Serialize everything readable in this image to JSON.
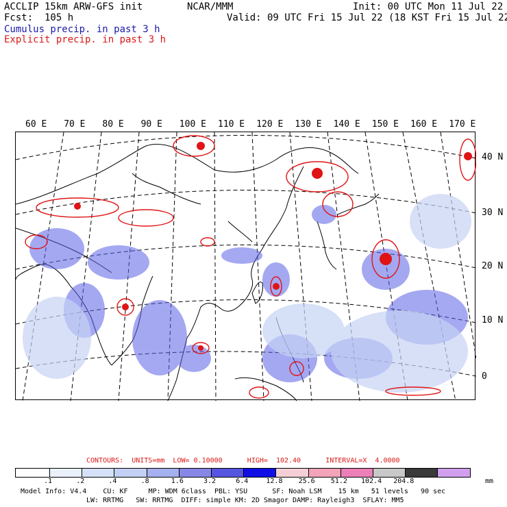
{
  "header": {
    "model": "ACCLIP 15km ARW-GFS init",
    "center": "NCAR/MMM",
    "init": "Init: 00 UTC Mon 11 Jul 22",
    "fcst": "Fcst:  105 h",
    "valid": "Valid: 09 UTC Fri 15 Jul 22 (18 KST Fri 15 Jul 22)",
    "legend_cumulus": "Cumulus precip. in past 3 h",
    "legend_explicit": "Explicit precip. in past 3 h"
  },
  "map": {
    "lon_labels": [
      "60 E",
      "70 E",
      "80 E",
      "90 E",
      "100 E",
      "110 E",
      "120 E",
      "130 E",
      "140 E",
      "150 E",
      "160 E",
      "170 E"
    ],
    "lat_labels": [
      "40 N",
      "30 N",
      "20 N",
      "10 N",
      "0"
    ]
  },
  "contours": {
    "text": "CONTOURS:  UNITS=mm  LOW= 0.10000      HIGH=  102.40      INTERVAL=X  4.0000"
  },
  "colorbar": {
    "colors": [
      "#ffffff",
      "#eaf1fb",
      "#d4e1f6",
      "#c2d0f3",
      "#a5b0ee",
      "#8787e8",
      "#5555e0",
      "#1010e6",
      "#f4d0d6",
      "#f3a4b8",
      "#ec7fb8",
      "#c8c8c8",
      "#3a3a3a",
      "#d0a0ee"
    ],
    "labels": [
      ".1",
      ".2",
      ".4",
      ".8",
      "1.6",
      "3.2",
      "6.4",
      "12.8",
      "25.6",
      "51.2",
      "102.4",
      "204.8"
    ],
    "unit": "mm"
  },
  "footer": {
    "line1": "Model Info: V4.4    CU: KF     MP: WDM 6class  PBL: YSU      SF: Noah LSM    15 km   51 levels   90 sec",
    "line2": "LW: RRTMG   SW: RRTMG  DIFF: simple KM: 2D Smagor DAMP: Rayleigh3  SFLAY: MM5"
  }
}
